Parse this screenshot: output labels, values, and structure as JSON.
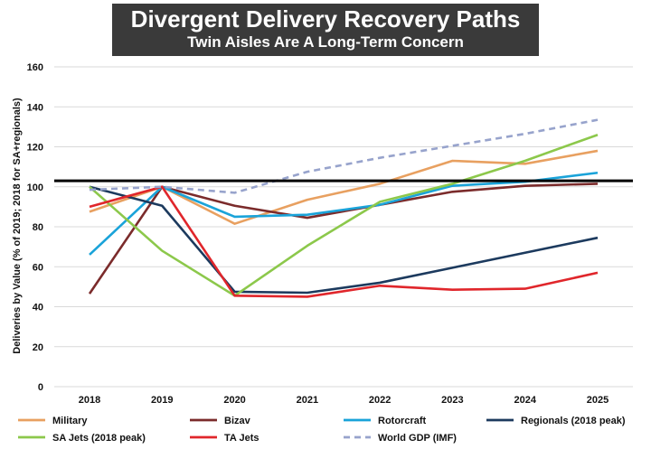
{
  "title": "Divergent Delivery Recovery Paths",
  "subtitle": "Twin Aisles Are A Long-Term Concern",
  "chart_data": {
    "type": "line",
    "categories": [
      "2018",
      "2019",
      "2020",
      "2021",
      "2022",
      "2023",
      "2024",
      "2025"
    ],
    "ylabel": "Deliveries by Value (% of 2019; 2018 for SA+regionals)",
    "xlabel": "",
    "ylim": [
      0,
      160
    ],
    "yticks": [
      0,
      20,
      40,
      60,
      80,
      100,
      120,
      140,
      160
    ],
    "reference_line": 103,
    "series": [
      {
        "name": "Military",
        "color": "#e8a060",
        "dashed": false,
        "values": [
          87.5,
          100,
          81.5,
          93.5,
          101.5,
          113,
          111.5,
          118
        ]
      },
      {
        "name": "Bizav",
        "color": "#7b2b2b",
        "dashed": false,
        "values": [
          46.5,
          100,
          90.5,
          84.5,
          91,
          97.5,
          100.5,
          101.5
        ]
      },
      {
        "name": "Rotorcraft",
        "color": "#1aa3d9",
        "dashed": false,
        "values": [
          66,
          100,
          85,
          86,
          91,
          100.5,
          102.5,
          107
        ]
      },
      {
        "name": "Regionals (2018 peak)",
        "color": "#1c3a5e",
        "dashed": false,
        "values": [
          100,
          90.5,
          47.5,
          47,
          52,
          59.5,
          67,
          74.5
        ]
      },
      {
        "name": "SA Jets (2018 peak)",
        "color": "#8cc84b",
        "dashed": false,
        "values": [
          100,
          68,
          45.5,
          70.5,
          92.5,
          101.5,
          113,
          126
        ]
      },
      {
        "name": "TA Jets",
        "color": "#e0262b",
        "dashed": false,
        "values": [
          90,
          100,
          45.5,
          45,
          50.5,
          48.5,
          49,
          57
        ]
      },
      {
        "name": "World GDP (IMF)",
        "color": "#97a3cc",
        "dashed": true,
        "values": [
          98.5,
          100,
          97,
          107.5,
          114.5,
          120.5,
          126.5,
          133.5
        ]
      }
    ]
  }
}
